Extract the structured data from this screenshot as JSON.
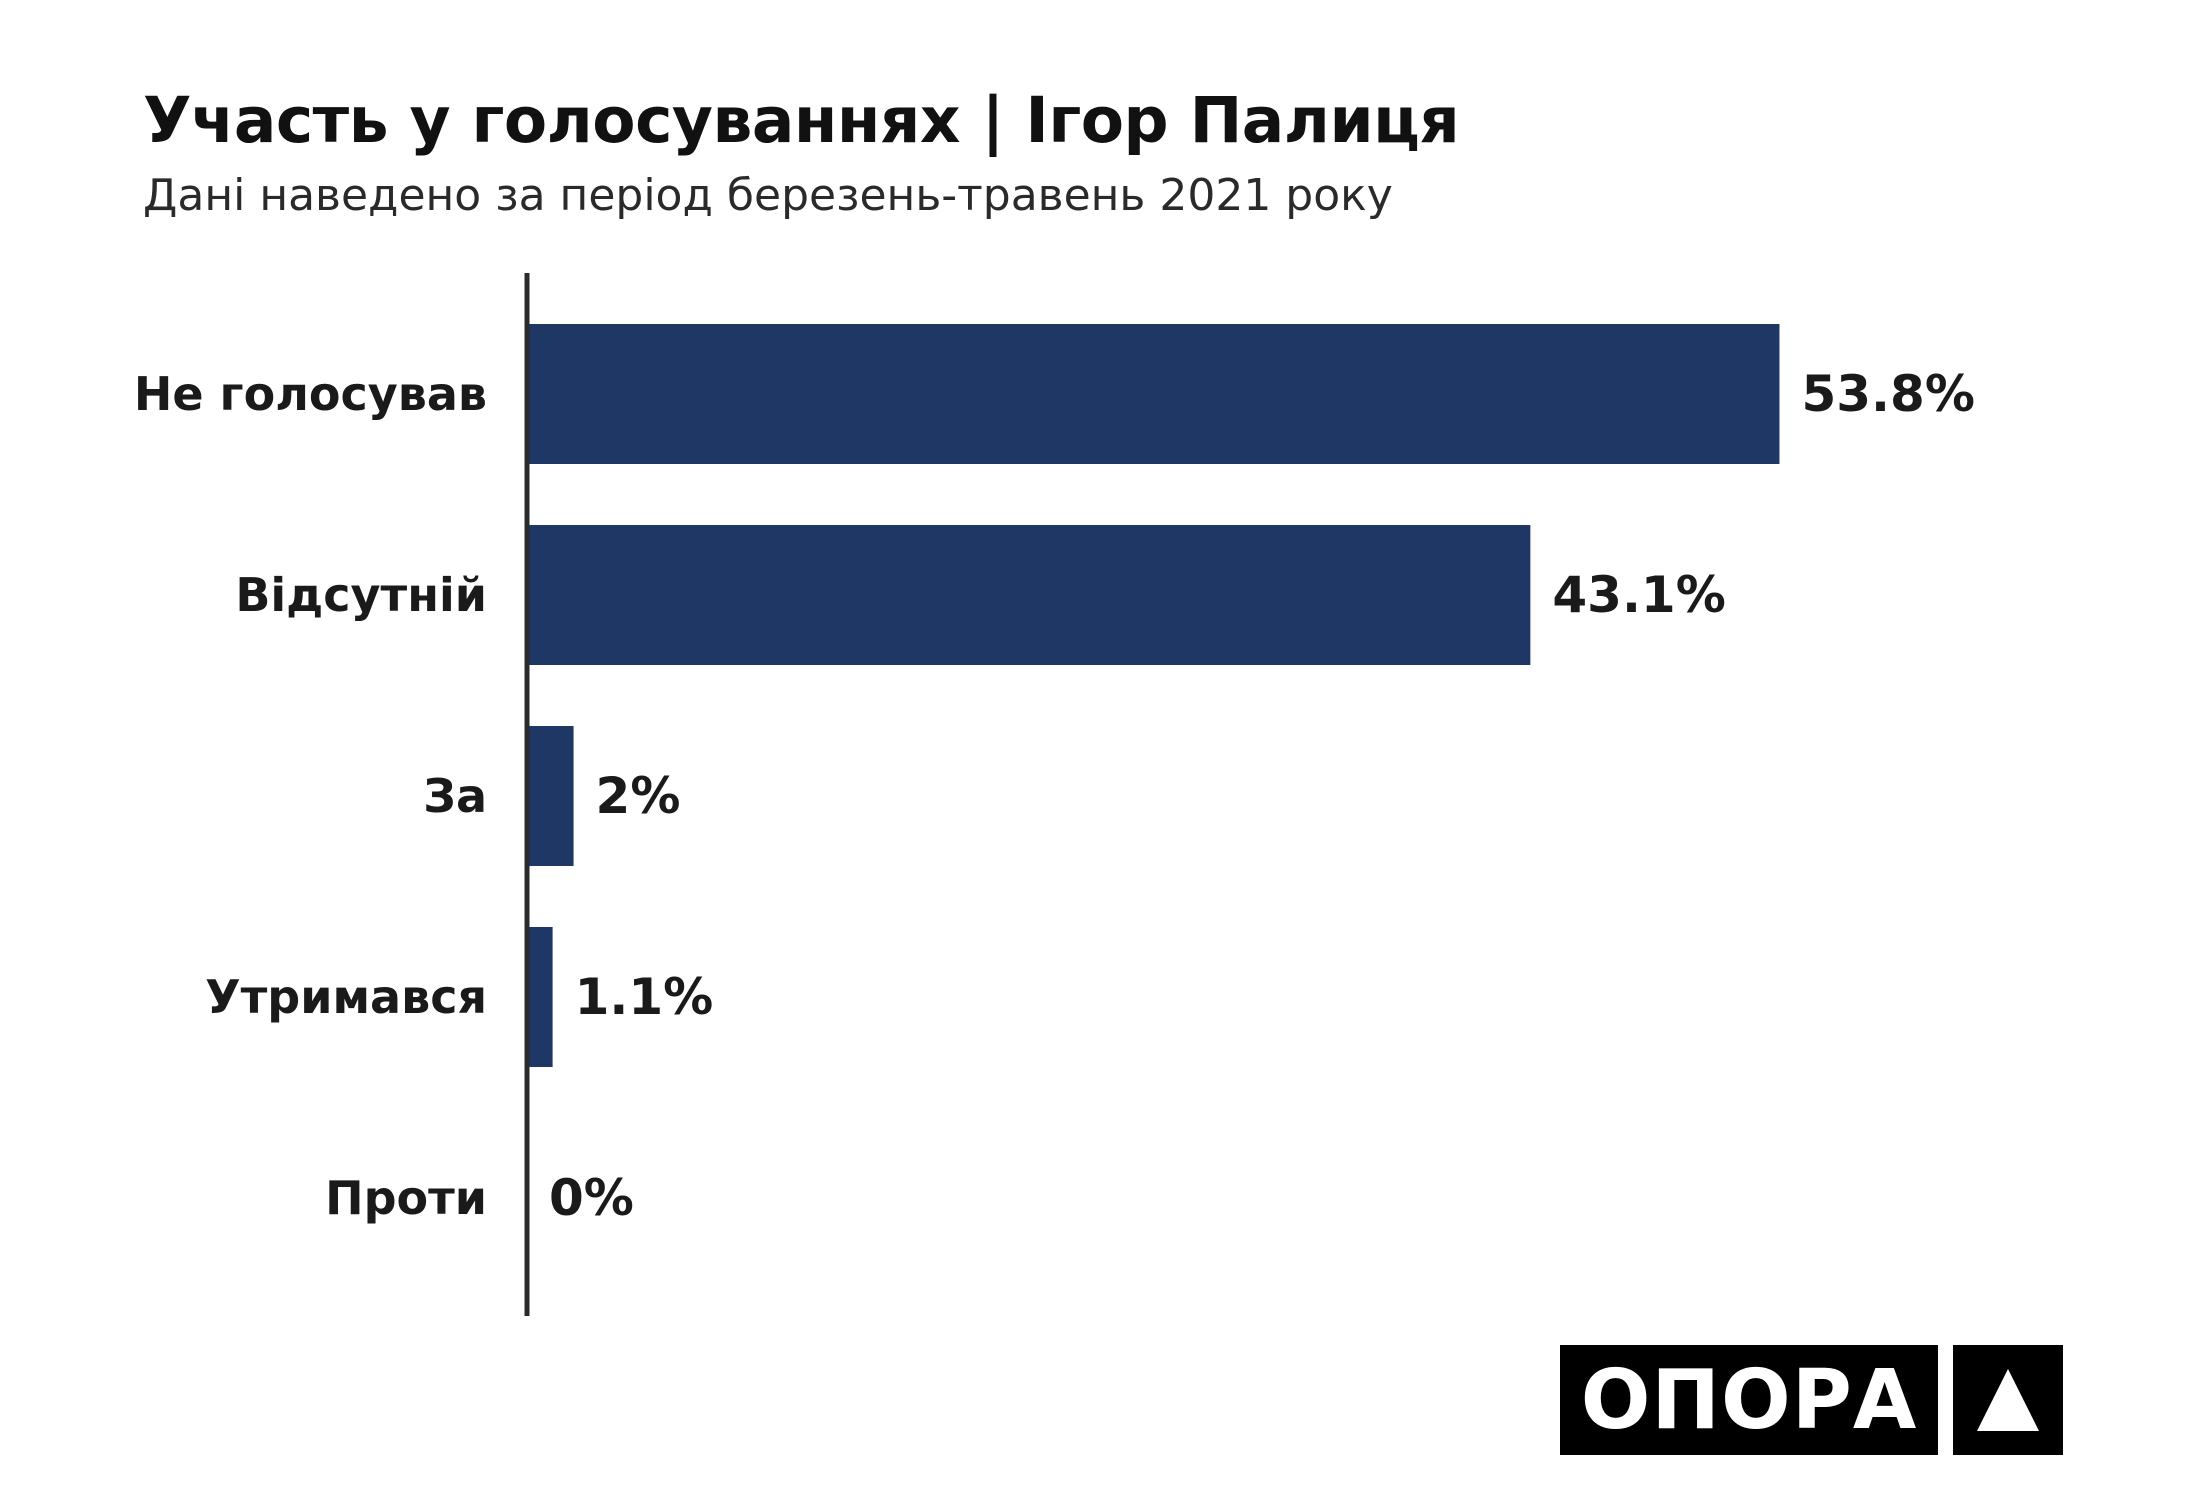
{
  "header": {
    "title": "Участь у голосуваннях | Ігор Палиця",
    "subtitle": "Дані наведено за період березень-травень 2021 року"
  },
  "chart_data": {
    "type": "bar",
    "orientation": "horizontal",
    "title": "Участь у голосуваннях | Ігор Палиця",
    "subtitle": "Дані наведено за період березень-травень 2021 року",
    "categories": [
      "Не голосував",
      "Відсутній",
      "За",
      "Утримався",
      "Проти"
    ],
    "values": [
      53.8,
      43.1,
      2,
      1.1,
      0
    ],
    "value_labels": [
      "53.8%",
      "43.1%",
      "2%",
      "1.1%",
      "0%"
    ],
    "xlim": [
      0,
      60
    ],
    "grid": false,
    "legend": "none",
    "bar_color": "#1f3765"
  },
  "colors": {
    "bar": "#1f3765",
    "axis": "#2b2b2b",
    "text": "#1a1a1a",
    "logo_bg": "#000000",
    "logo_fg": "#ffffff"
  },
  "logo": {
    "wordmark": "ОПОРА",
    "mark_icon": "triangle-icon"
  }
}
